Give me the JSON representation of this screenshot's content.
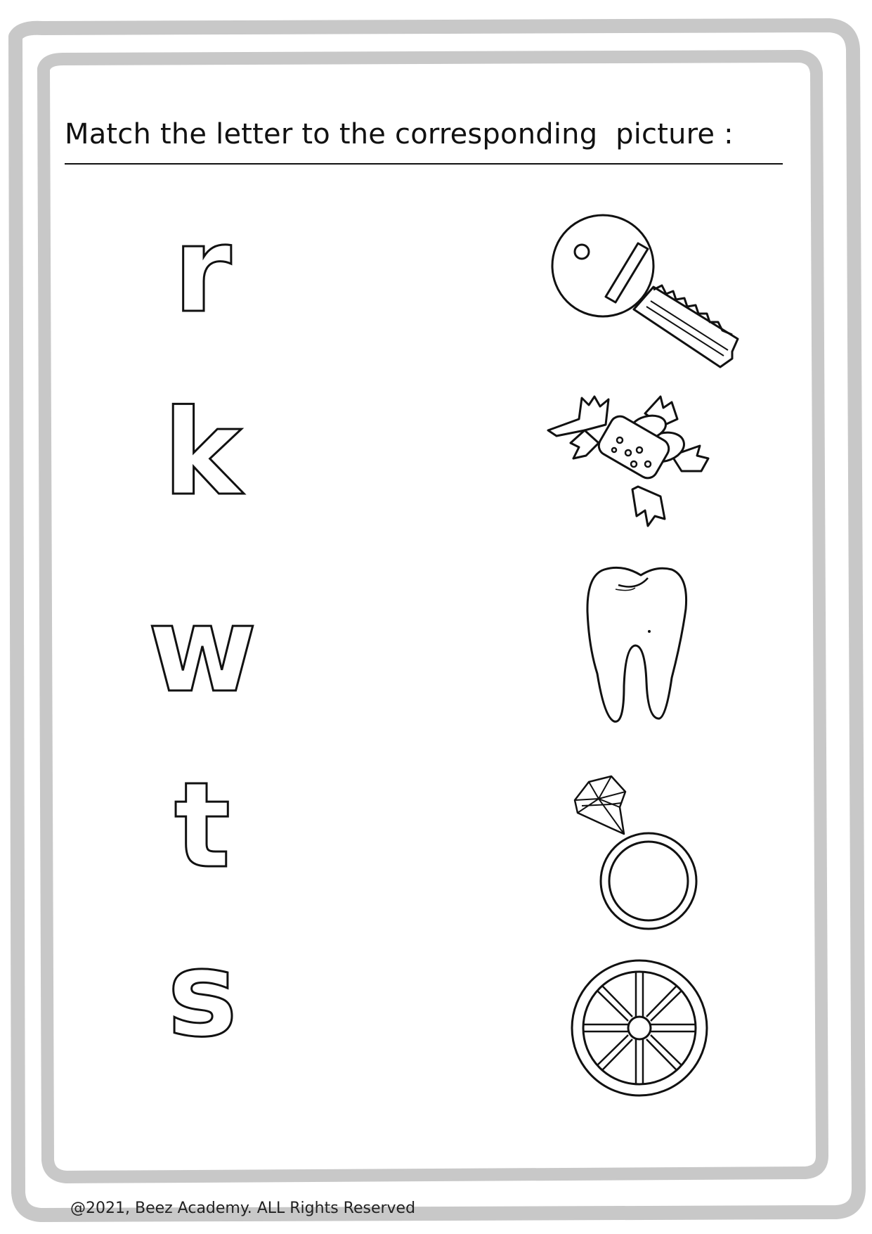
{
  "worksheet": {
    "title": "Match the letter to the corresponding  picture :",
    "letters": [
      "r",
      "k",
      "w",
      "t",
      "s"
    ],
    "pictures": [
      "key-icon",
      "candy-icon",
      "tooth-icon",
      "ring-icon",
      "wheel-icon"
    ],
    "footer": "@2021, Beez Academy. ALL Rights Reserved"
  },
  "colors": {
    "frame": "#c8c8c8",
    "ink": "#111111"
  }
}
